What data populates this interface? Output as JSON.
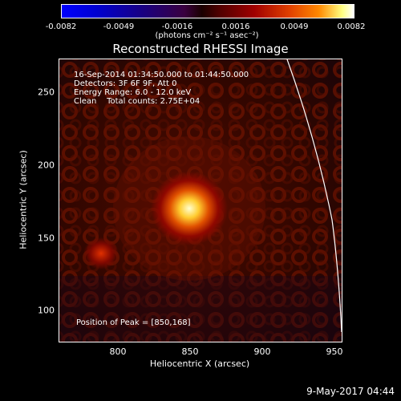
{
  "colorbar": {
    "ticks": [
      "-0.0082",
      "-0.0049",
      "-0.0016",
      "0.0016",
      "0.0049",
      "0.0082"
    ],
    "units": "(photons cm⁻² s⁻¹ asec⁻²)"
  },
  "image": {
    "title": "Reconstructed RHESSI Image",
    "info": [
      "16-Sep-2014 01:34:50.000 to 01:44:50.000",
      "Detectors: 3F 6F 9F, Att 0",
      "Energy Range: 6.0 - 12.0 keV",
      "Clean    Total counts: 2.75E+04"
    ],
    "peak_label": "Position of Peak = [850,168]",
    "x_label": "Heliocentric X (arcsec)",
    "y_label": "Heliocentric Y (arcsec)",
    "x_ticks": [
      "800",
      "850",
      "900",
      "950"
    ],
    "y_ticks": [
      "100",
      "150",
      "200",
      "250"
    ]
  },
  "timestamp": "9-May-2017 04:44"
}
